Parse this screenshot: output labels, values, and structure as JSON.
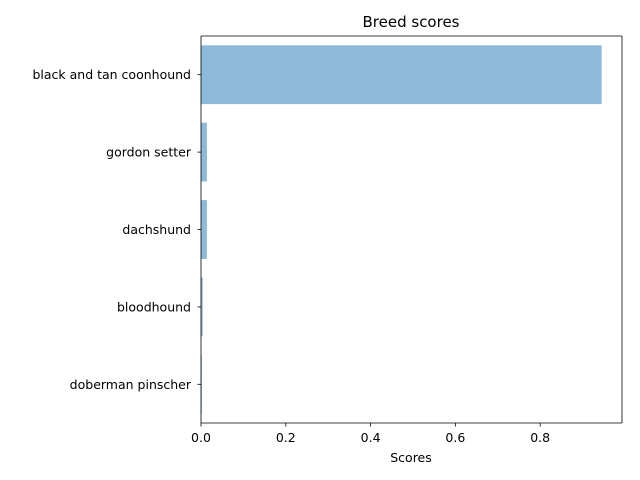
{
  "chart_data": {
    "type": "bar",
    "orientation": "horizontal",
    "title": "Breed scores",
    "xlabel": "Scores",
    "ylabel": "",
    "categories": [
      "black and tan coonhound",
      "gordon setter",
      "dachshund",
      "bloodhound",
      "doberman pinscher"
    ],
    "values": [
      0.945,
      0.014,
      0.014,
      0.004,
      0.001
    ],
    "xlim": [
      0,
      0.993
    ],
    "xticks": [
      0.0,
      0.2,
      0.4,
      0.6,
      0.8
    ],
    "xtick_labels": [
      "0.0",
      "0.2",
      "0.4",
      "0.6",
      "0.8"
    ],
    "grid": false,
    "bar_color": "#8ebad9"
  }
}
